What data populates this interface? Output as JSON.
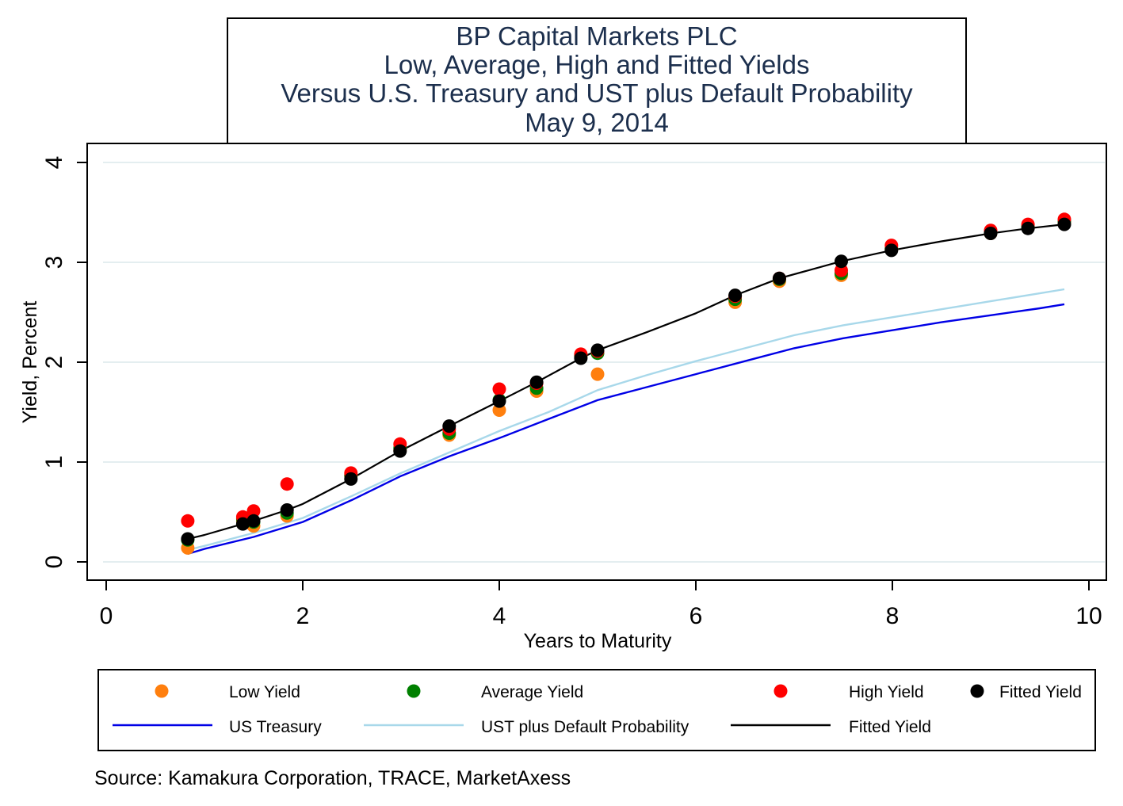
{
  "chart_data": {
    "type": "scatter",
    "title_lines": [
      "BP Capital Markets PLC",
      "Low, Average, High and Fitted Yields",
      "Versus U.S. Treasury and UST plus Default Probability",
      "May 9, 2014"
    ],
    "xlabel": "Years to Maturity",
    "ylabel": "Yield, Percent",
    "xlim": [
      0,
      10
    ],
    "ylim": [
      0,
      4
    ],
    "xticks": [
      "0",
      "2",
      "4",
      "6",
      "8",
      "10"
    ],
    "yticks": [
      "0",
      "1",
      "2",
      "3",
      "4"
    ],
    "grid": true,
    "legend_position": "bottom",
    "source": "Source: Kamakura Corporation, TRACE, MarketAxess",
    "series": [
      {
        "name": "Low Yield",
        "kind": "points",
        "color": "#ff7f0e",
        "x": [
          0.83,
          1.39,
          1.5,
          1.84,
          2.49,
          2.99,
          3.49,
          4.0,
          4.38,
          4.83,
          5.0,
          6.4,
          6.85,
          7.48,
          7.99,
          9.0,
          9.38,
          9.75
        ],
        "y": [
          0.14,
          0.41,
          0.36,
          0.46,
          0.86,
          1.12,
          1.27,
          1.52,
          1.71,
          2.06,
          1.88,
          2.6,
          2.81,
          2.87,
          3.13,
          3.29,
          3.35,
          3.39
        ]
      },
      {
        "name": "Average Yield",
        "kind": "points",
        "color": "#008000",
        "x": [
          0.83,
          1.39,
          1.5,
          1.84,
          2.49,
          2.99,
          3.49,
          4.0,
          4.38,
          4.83,
          5.0,
          6.4,
          6.85,
          7.48,
          7.99,
          9.0,
          9.38,
          9.75
        ],
        "y": [
          0.22,
          0.43,
          0.4,
          0.49,
          0.87,
          1.14,
          1.29,
          1.62,
          1.74,
          2.07,
          2.09,
          2.63,
          2.83,
          2.89,
          3.14,
          3.3,
          3.36,
          3.41
        ]
      },
      {
        "name": "High Yield",
        "kind": "points",
        "color": "#ff0000",
        "x": [
          0.83,
          1.39,
          1.5,
          1.84,
          2.49,
          2.99,
          3.49,
          4.0,
          4.38,
          4.83,
          5.0,
          6.4,
          6.85,
          7.48,
          7.99,
          9.0,
          9.38,
          9.75
        ],
        "y": [
          0.41,
          0.45,
          0.51,
          0.78,
          0.89,
          1.18,
          1.33,
          1.73,
          1.79,
          2.08,
          2.11,
          2.66,
          2.84,
          2.92,
          3.17,
          3.32,
          3.38,
          3.43
        ]
      },
      {
        "name": "Fitted Yield",
        "kind": "points",
        "color": "#000000",
        "x": [
          0.83,
          1.39,
          1.5,
          1.84,
          2.49,
          2.99,
          3.49,
          4.0,
          4.38,
          4.83,
          5.0,
          6.4,
          6.85,
          7.48,
          7.99,
          9.0,
          9.38,
          9.75
        ],
        "y": [
          0.23,
          0.38,
          0.41,
          0.52,
          0.83,
          1.11,
          1.36,
          1.61,
          1.8,
          2.04,
          2.12,
          2.67,
          2.84,
          3.01,
          3.12,
          3.29,
          3.34,
          3.38
        ]
      },
      {
        "name": "US Treasury",
        "kind": "line",
        "color": "#0000e6",
        "x": [
          0.83,
          1.0,
          1.5,
          2.0,
          2.5,
          3.0,
          3.5,
          4.0,
          4.5,
          5.0,
          5.5,
          6.0,
          6.5,
          7.0,
          7.5,
          8.0,
          8.5,
          9.0,
          9.5,
          9.75
        ],
        "y": [
          0.08,
          0.13,
          0.25,
          0.4,
          0.62,
          0.86,
          1.06,
          1.24,
          1.43,
          1.62,
          1.75,
          1.88,
          2.01,
          2.14,
          2.24,
          2.32,
          2.4,
          2.47,
          2.54,
          2.58
        ]
      },
      {
        "name": "UST plus Default Probability",
        "kind": "line",
        "color": "#a8d8ea",
        "x": [
          0.83,
          1.0,
          1.5,
          2.0,
          2.5,
          3.0,
          3.5,
          4.0,
          4.5,
          5.0,
          5.5,
          6.0,
          6.5,
          7.0,
          7.5,
          8.0,
          8.5,
          9.0,
          9.5,
          9.75
        ],
        "y": [
          0.12,
          0.16,
          0.29,
          0.44,
          0.66,
          0.89,
          1.1,
          1.31,
          1.5,
          1.72,
          1.87,
          2.01,
          2.14,
          2.27,
          2.37,
          2.45,
          2.53,
          2.61,
          2.69,
          2.73
        ]
      },
      {
        "name": "Fitted Yield",
        "kind": "line",
        "color": "#000000",
        "x": [
          0.83,
          1.0,
          1.39,
          1.5,
          1.84,
          2.0,
          2.49,
          2.99,
          3.49,
          4.0,
          4.38,
          4.83,
          5.0,
          5.5,
          6.0,
          6.4,
          6.85,
          7.48,
          7.99,
          8.5,
          9.0,
          9.38,
          9.75
        ],
        "y": [
          0.23,
          0.27,
          0.38,
          0.41,
          0.52,
          0.58,
          0.83,
          1.11,
          1.36,
          1.61,
          1.8,
          2.04,
          2.12,
          2.3,
          2.49,
          2.67,
          2.84,
          3.01,
          3.12,
          3.21,
          3.29,
          3.34,
          3.38
        ]
      }
    ],
    "legend": [
      {
        "label": "Low Yield",
        "kind": "point",
        "color": "#ff7f0e"
      },
      {
        "label": "Average Yield",
        "kind": "point",
        "color": "#008000"
      },
      {
        "label": "High Yield",
        "kind": "point",
        "color": "#ff0000"
      },
      {
        "label": "Fitted Yield",
        "kind": "point",
        "color": "#000000"
      },
      {
        "label": "US Treasury",
        "kind": "line",
        "color": "#0000e6"
      },
      {
        "label": "UST plus Default Probability",
        "kind": "line",
        "color": "#a8d8ea"
      },
      {
        "label": "Fitted Yield",
        "kind": "line",
        "color": "#000000"
      }
    ]
  }
}
